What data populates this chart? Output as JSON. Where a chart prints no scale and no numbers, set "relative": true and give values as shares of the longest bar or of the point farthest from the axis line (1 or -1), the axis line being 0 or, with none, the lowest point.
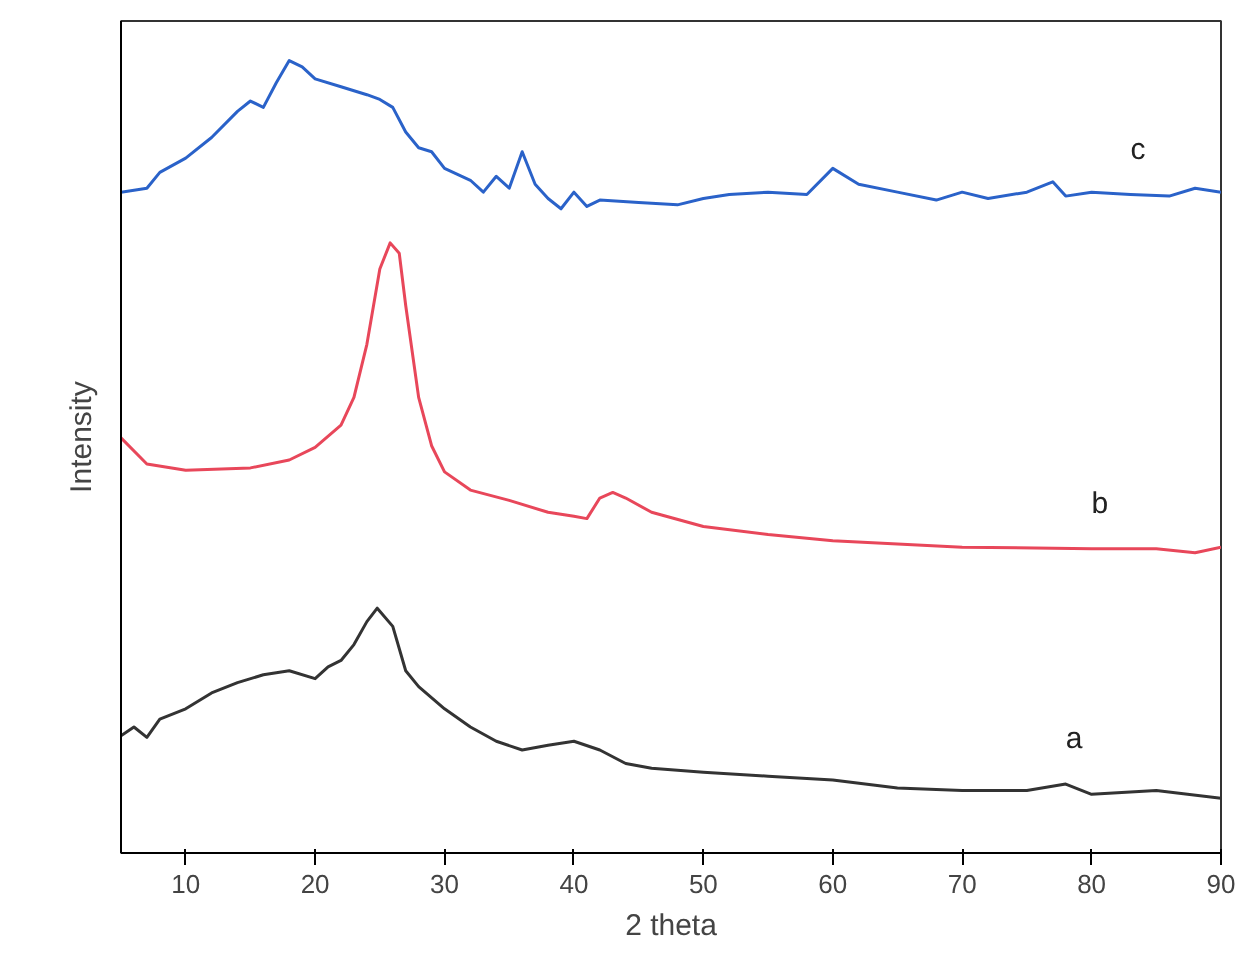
{
  "chart_data": {
    "type": "line",
    "xlabel": "2 theta",
    "ylabel": "Intensity",
    "relative": true,
    "xlim": [
      5,
      90
    ],
    "xticks": [
      10,
      20,
      30,
      40,
      50,
      60,
      70,
      80,
      90
    ],
    "grid": false,
    "legend": false,
    "marker": "none",
    "line_style": "solid",
    "series": [
      {
        "name": "c",
        "color": "#2a62c9",
        "x": [
          5,
          7,
          8,
          10,
          12,
          14,
          15,
          16,
          17,
          18,
          19,
          20,
          22,
          24,
          25,
          26,
          27,
          28,
          29,
          30,
          32,
          33,
          34,
          35,
          36,
          37,
          38,
          39,
          40,
          41,
          42,
          45,
          48,
          50,
          52,
          55,
          58,
          60,
          62,
          65,
          68,
          70,
          72,
          75,
          77,
          78,
          80,
          83,
          86,
          88,
          90
        ],
        "values": [
          0.834,
          0.839,
          0.859,
          0.877,
          0.903,
          0.936,
          0.949,
          0.941,
          0.972,
          1.0,
          0.992,
          0.977,
          0.967,
          0.957,
          0.951,
          0.941,
          0.91,
          0.89,
          0.885,
          0.864,
          0.849,
          0.834,
          0.854,
          0.839,
          0.885,
          0.844,
          0.826,
          0.813,
          0.834,
          0.816,
          0.824,
          0.821,
          0.818,
          0.826,
          0.831,
          0.834,
          0.831,
          0.864,
          0.844,
          0.834,
          0.824,
          0.834,
          0.826,
          0.834,
          0.847,
          0.829,
          0.834,
          0.831,
          0.829,
          0.839,
          0.834
        ]
      },
      {
        "name": "b",
        "color": "#e8475a",
        "x": [
          5,
          7,
          10,
          15,
          18,
          20,
          22,
          23,
          24,
          25,
          25.8,
          26.5,
          27,
          28,
          29,
          30,
          32,
          35,
          38,
          40,
          41,
          42,
          43,
          44,
          46,
          50,
          55,
          60,
          70,
          80,
          85,
          88,
          90
        ],
        "values": [
          0.524,
          0.491,
          0.483,
          0.486,
          0.496,
          0.512,
          0.54,
          0.575,
          0.642,
          0.737,
          0.77,
          0.757,
          0.691,
          0.575,
          0.514,
          0.481,
          0.458,
          0.445,
          0.43,
          0.425,
          0.422,
          0.448,
          0.455,
          0.448,
          0.43,
          0.412,
          0.402,
          0.394,
          0.386,
          0.384,
          0.384,
          0.379,
          0.386
        ]
      },
      {
        "name": "a",
        "color": "#333333",
        "x": [
          5,
          6,
          7,
          8,
          10,
          12,
          14,
          16,
          18,
          20,
          21,
          22,
          23,
          24,
          24.8,
          26,
          27,
          28,
          30,
          32,
          34,
          36,
          38,
          40,
          42,
          44,
          46,
          50,
          55,
          60,
          65,
          70,
          75,
          78,
          80,
          85,
          90
        ],
        "values": [
          0.148,
          0.159,
          0.146,
          0.169,
          0.182,
          0.202,
          0.215,
          0.225,
          0.23,
          0.22,
          0.235,
          0.243,
          0.263,
          0.292,
          0.309,
          0.286,
          0.23,
          0.21,
          0.182,
          0.159,
          0.141,
          0.13,
          0.136,
          0.141,
          0.13,
          0.113,
          0.107,
          0.102,
          0.097,
          0.092,
          0.082,
          0.079,
          0.079,
          0.087,
          0.074,
          0.079,
          0.069
        ]
      }
    ]
  }
}
